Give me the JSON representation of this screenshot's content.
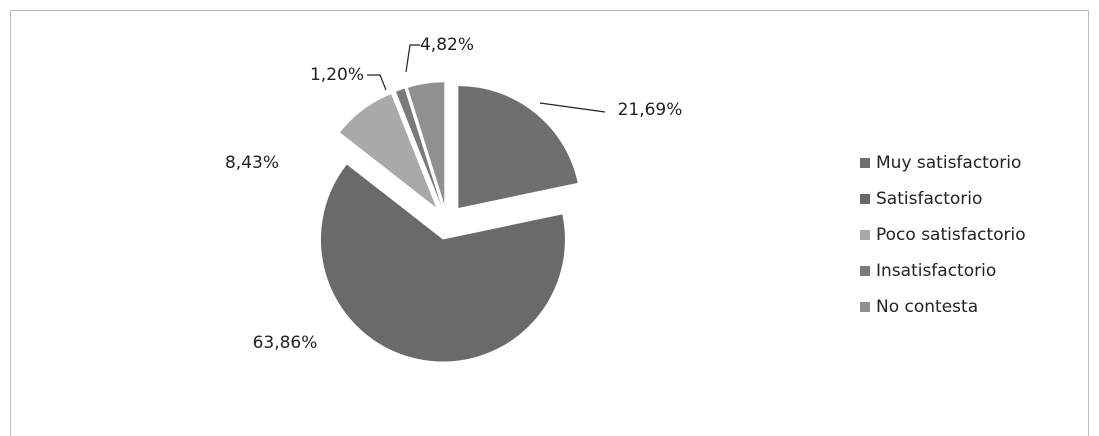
{
  "chart_data": {
    "type": "pie",
    "categories": [
      "Muy satisfactorio",
      "Satisfactorio",
      "Poco satisfactorio",
      "Insatisfactorio",
      "No contesta"
    ],
    "values": [
      21.69,
      63.86,
      8.43,
      1.2,
      4.82
    ],
    "value_labels": [
      "21,69%",
      "63,86%",
      "8,43%",
      "1,20%",
      "4,82%"
    ],
    "colors": [
      "#6f6f6f",
      "#6a6a6a",
      "#a9a9a9",
      "#7a7a7a",
      "#909090"
    ],
    "legend": "right"
  }
}
